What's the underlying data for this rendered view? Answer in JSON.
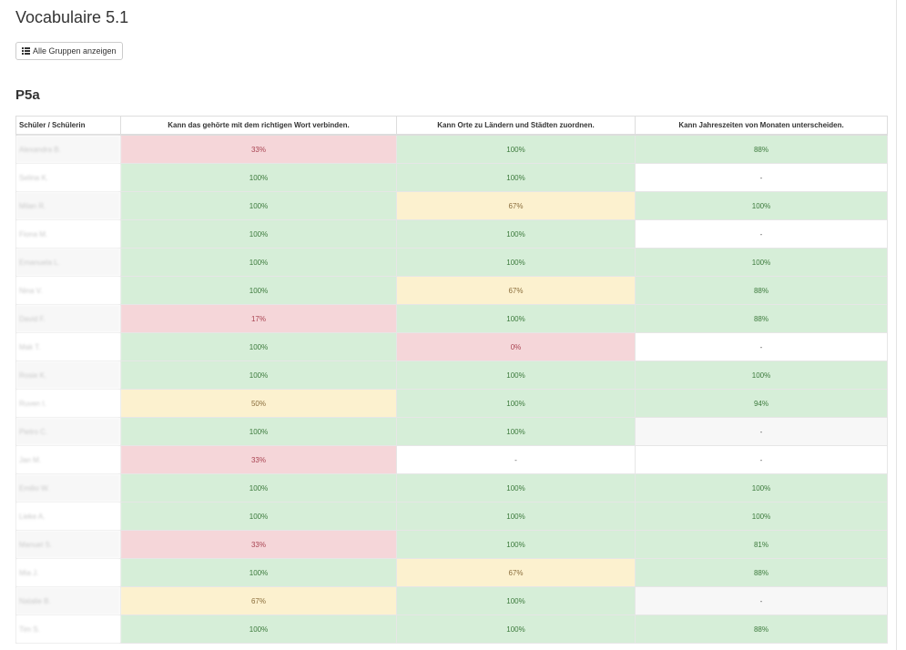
{
  "page": {
    "title": "Vocabulaire 5.1"
  },
  "toolbar": {
    "show_all_groups_label": "Alle Gruppen anzeigen",
    "show_all_groups_icon": "list-icon"
  },
  "group": {
    "name": "P5a"
  },
  "table": {
    "headers": [
      "Schüler / Schülerin",
      "Kann das gehörte mit dem richtigen Wort verbinden.",
      "Kann Orte zu Ländern und Städten zuordnen.",
      "Kann Jahreszeiten von Monaten unterscheiden."
    ],
    "status_colors": {
      "success": "#d6eed8",
      "danger": "#f5d6d9",
      "warning": "#fcf1cf"
    },
    "rows": [
      {
        "student": "Alexandra B.",
        "cells": [
          {
            "v": "33%",
            "s": "danger"
          },
          {
            "v": "100%",
            "s": "success"
          },
          {
            "v": "88%",
            "s": "success"
          }
        ]
      },
      {
        "student": "Selina K.",
        "cells": [
          {
            "v": "100%",
            "s": "success"
          },
          {
            "v": "100%",
            "s": "success"
          },
          {
            "v": "-",
            "s": "none"
          }
        ]
      },
      {
        "student": "Milan R.",
        "cells": [
          {
            "v": "100%",
            "s": "success"
          },
          {
            "v": "67%",
            "s": "warning"
          },
          {
            "v": "100%",
            "s": "success"
          }
        ]
      },
      {
        "student": "Fiona M.",
        "cells": [
          {
            "v": "100%",
            "s": "success"
          },
          {
            "v": "100%",
            "s": "success"
          },
          {
            "v": "-",
            "s": "none"
          }
        ]
      },
      {
        "student": "Emanuela L.",
        "cells": [
          {
            "v": "100%",
            "s": "success"
          },
          {
            "v": "100%",
            "s": "success"
          },
          {
            "v": "100%",
            "s": "success"
          }
        ]
      },
      {
        "student": "Nina V.",
        "cells": [
          {
            "v": "100%",
            "s": "success"
          },
          {
            "v": "67%",
            "s": "warning"
          },
          {
            "v": "88%",
            "s": "success"
          }
        ]
      },
      {
        "student": "David F.",
        "cells": [
          {
            "v": "17%",
            "s": "danger"
          },
          {
            "v": "100%",
            "s": "success"
          },
          {
            "v": "88%",
            "s": "success"
          }
        ]
      },
      {
        "student": "Mak T.",
        "cells": [
          {
            "v": "100%",
            "s": "success"
          },
          {
            "v": "0%",
            "s": "danger"
          },
          {
            "v": "-",
            "s": "none"
          }
        ]
      },
      {
        "student": "Rosie K.",
        "cells": [
          {
            "v": "100%",
            "s": "success"
          },
          {
            "v": "100%",
            "s": "success"
          },
          {
            "v": "100%",
            "s": "success"
          }
        ]
      },
      {
        "student": "Ruven I.",
        "cells": [
          {
            "v": "50%",
            "s": "warning"
          },
          {
            "v": "100%",
            "s": "success"
          },
          {
            "v": "94%",
            "s": "success"
          }
        ]
      },
      {
        "student": "Pietro C.",
        "cells": [
          {
            "v": "100%",
            "s": "success"
          },
          {
            "v": "100%",
            "s": "success"
          },
          {
            "v": "-",
            "s": "none-gray"
          }
        ]
      },
      {
        "student": "Jan M.",
        "cells": [
          {
            "v": "33%",
            "s": "danger"
          },
          {
            "v": "-",
            "s": "none"
          },
          {
            "v": "-",
            "s": "none"
          }
        ]
      },
      {
        "student": "Emilio W.",
        "cells": [
          {
            "v": "100%",
            "s": "success"
          },
          {
            "v": "100%",
            "s": "success"
          },
          {
            "v": "100%",
            "s": "success"
          }
        ]
      },
      {
        "student": "Lieke A.",
        "cells": [
          {
            "v": "100%",
            "s": "success"
          },
          {
            "v": "100%",
            "s": "success"
          },
          {
            "v": "100%",
            "s": "success"
          }
        ]
      },
      {
        "student": "Manuel S.",
        "cells": [
          {
            "v": "33%",
            "s": "danger"
          },
          {
            "v": "100%",
            "s": "success"
          },
          {
            "v": "81%",
            "s": "success"
          }
        ]
      },
      {
        "student": "Mia J.",
        "cells": [
          {
            "v": "100%",
            "s": "success"
          },
          {
            "v": "67%",
            "s": "warning"
          },
          {
            "v": "88%",
            "s": "success"
          }
        ]
      },
      {
        "student": "Natalie B.",
        "cells": [
          {
            "v": "67%",
            "s": "warning"
          },
          {
            "v": "100%",
            "s": "success"
          },
          {
            "v": "-",
            "s": "none-gray"
          }
        ]
      },
      {
        "student": "Tim S.",
        "cells": [
          {
            "v": "100%",
            "s": "success"
          },
          {
            "v": "100%",
            "s": "success"
          },
          {
            "v": "88%",
            "s": "success"
          }
        ]
      }
    ]
  }
}
